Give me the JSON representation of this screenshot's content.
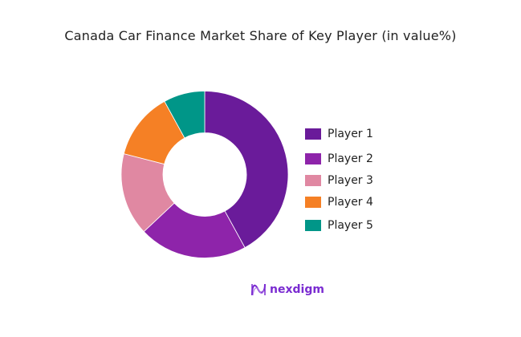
{
  "title": "Canada Car Finance Market Share of Key Player (in value%)",
  "chart_data": {
    "type": "pie",
    "subtype": "donut",
    "title": "Canada Car Finance Market Share of Key Player (in value%)",
    "categories": [
      "Player 1",
      "Player 2",
      "Player 3",
      "Player 4",
      "Player 5"
    ],
    "values": [
      42,
      21,
      16,
      13,
      8
    ],
    "colors": [
      "#6a1b9a",
      "#8e24aa",
      "#e088a2",
      "#f58025",
      "#009688"
    ],
    "legend_position": "right",
    "start_angle": "12 o'clock, clockwise"
  },
  "legend": {
    "items": [
      {
        "label": "Player 1",
        "color": "#6a1b9a"
      },
      {
        "label": "Player 2",
        "color": "#8e24aa"
      },
      {
        "label": "Player 3",
        "color": "#e088a2"
      },
      {
        "label": "Player 4",
        "color": "#f58025"
      },
      {
        "label": "Player 5",
        "color": "#009688"
      }
    ]
  },
  "brand": {
    "name": "nexdigm",
    "color": "#7a2bd1"
  }
}
